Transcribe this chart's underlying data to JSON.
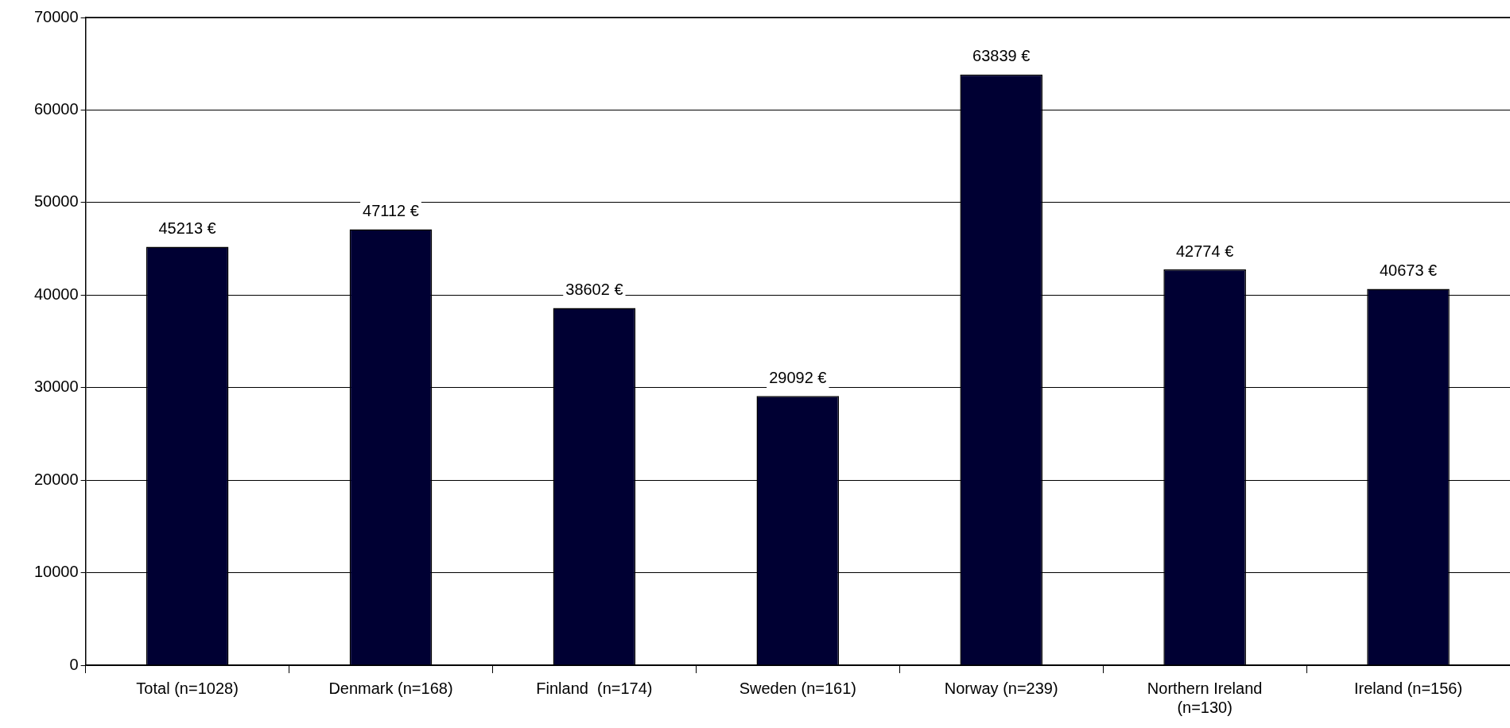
{
  "chart_data": {
    "type": "bar",
    "categories": [
      "Total (n=1028)",
      "Denmark (n=168)",
      "Finland  (n=174)",
      "Sweden (n=161)",
      "Norway (n=239)",
      "Northern Ireland (n=130)",
      "Ireland (n=156)"
    ],
    "values": [
      45213,
      47112,
      38602,
      29092,
      63839,
      42774,
      40673
    ],
    "value_labels": [
      "45213 €",
      "47112 €",
      "38602 €",
      "29092 €",
      "63839 €",
      "42774 €",
      "40673 €"
    ],
    "color": "#000033",
    "ylim": [
      0,
      70000
    ],
    "yticks": [
      0,
      10000,
      20000,
      30000,
      40000,
      50000,
      60000,
      70000
    ],
    "grid": "y",
    "legend": false
  }
}
